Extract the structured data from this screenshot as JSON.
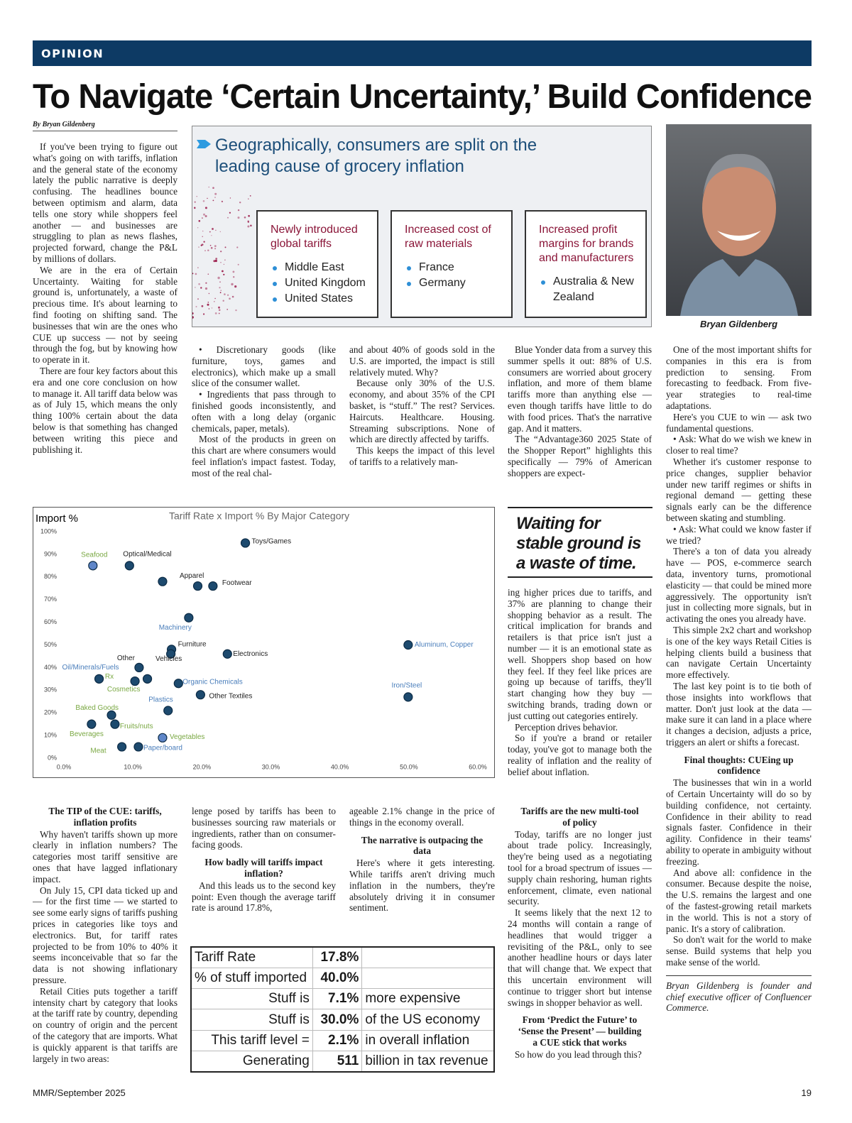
{
  "header": {
    "section": "OPINION",
    "title": "To Navigate ‘Certain Uncertainty,’ Build Confidence",
    "byline": "By Bryan Gildenberg"
  },
  "infographic": {
    "title": "Geographically, consumers are split on the leading cause of grocery inflation",
    "boxes": [
      {
        "heading": "Newly introduced global tariffs",
        "items": [
          "Middle East",
          "United Kingdom",
          "United States"
        ]
      },
      {
        "heading": "Increased cost of raw materials",
        "items": [
          "France",
          "Germany"
        ]
      },
      {
        "heading": "Increased profit margins for brands and manufacturers",
        "items": [
          "Australia & New Zealand"
        ]
      }
    ]
  },
  "photo": {
    "caption": "Bryan Gildenberg"
  },
  "pull_quote": "Waiting for stable ground is a waste of time.",
  "article": {
    "col1": [
      {
        "p": "If you've been trying to figure out what's going on with tariffs, inflation and the general state of the economy lately the public narrative is deeply confusing. The headlines bounce between optimism and alarm, data tells one story while shoppers feel another — and businesses are struggling to plan as news flashes, projected forward, change the P&L by millions of dollars."
      },
      {
        "p": "We are in the era of Certain Uncertainty. Waiting for stable ground is, unfortunately, a waste of precious time. It's about learning to find footing on shifting sand. The businesses that win are the ones who CUE up success — not by seeing through the fog, but by knowing how to operate in it."
      },
      {
        "p": "There are four key factors about this era and one core conclusion on how to manage it. All tariff data below was as of July 15, which means the only thing 100% certain about the data below is that something has changed between writing this piece and publishing it."
      }
    ],
    "col2": [
      {
        "p": "• Discretionary goods (like furniture, toys, games and electronics), which make up a small slice of the consumer wallet."
      },
      {
        "p": "• Ingredients that pass through to finished goods inconsistently, and often with a long delay (organic chemicals, paper, metals)."
      },
      {
        "p": "Most of the products in green on this chart are where consumers would feel inflation's impact fastest. Today, most of the real chal-"
      }
    ],
    "col3": [
      {
        "cont": "and about 40% of goods sold in the U.S. are imported, the impact is still relatively muted. Why?"
      },
      {
        "p": "Because only 30% of the U.S. economy, and about 35% of the CPI basket, is “stuff.” The rest? Services. Haircuts. Healthcare. Housing. Streaming subscriptions. None of which are directly affected by tariffs."
      },
      {
        "p": "This keeps the impact of this level of tariffs to a relatively man-"
      }
    ],
    "col4": [
      {
        "p": "Blue Yonder data from a survey this summer spells it out: 88% of U.S. consumers are worried about grocery inflation, and more of them blame tariffs more than anything else — even though tariffs have little to do with food prices. That's the narrative gap. And it matters."
      },
      {
        "p": "The “Advantage360 2025 State of the Shopper Report” highlights this specifically — 79% of American shoppers are expect-"
      }
    ],
    "col4_continued": [
      {
        "cont": "ing higher prices due to tariffs, and 37% are planning to change their shopping behavior as a result. The critical implication for brands and retailers is that price isn't just a number — it is an emotional state as well. Shoppers shop based on how they feel. If they feel like prices are going up because of tariffs, they'll start changing how they buy — switching brands, trading down or just cutting out categories entirely."
      },
      {
        "p": "Perception drives behavior."
      },
      {
        "p": "So if you're a brand or retailer today, you've got to manage both the reality of inflation and the reality of belief about inflation."
      }
    ],
    "col5": [
      {
        "p": "One of the most important shifts for companies in this era is from prediction to sensing. From forecasting to feedback. From five-year strategies to real-time adaptations."
      },
      {
        "p": "Here's you CUE to win — ask two fundamental questions."
      },
      {
        "p": "• Ask: What do we wish we knew in closer to real time?"
      },
      {
        "p": "Whether it's customer response to price changes, supplier behavior under new tariff regimes or shifts in regional demand — getting these signals early can be the difference between skating and stumbling."
      },
      {
        "p": "• Ask: What could we know faster if we tried?"
      },
      {
        "p": "There's a ton of data you already have — POS, e-commerce search data, inventory turns, promotional elasticity — that could be mined more aggressively. The opportunity isn't just in collecting more signals, but in activating the ones you already have."
      },
      {
        "p": "This simple 2x2 chart and workshop is one of the key ways Retail Cities is helping clients build a business that can navigate Certain Uncertainty more effectively."
      },
      {
        "p": "The last key point is to tie both of those insights into workflows that matter. Don't just look at the data — make sure it can land in a place where it changes a decision, adjusts a price, triggers an alert or shifts a forecast."
      },
      {
        "h": "Final thoughts: CUEing up confidence"
      },
      {
        "p": "The businesses that win in a world of Certain Uncertainty will do so by building confidence, not certainty. Confidence in their ability to read signals faster. Confidence in their agility. Confidence in their teams' ability to operate in ambiguity without freezing."
      },
      {
        "p": "And above all: confidence in the consumer. Because despite the noise, the U.S. remains the largest and one of the fastest-growing retail markets in the world. This is not a story of panic. It's a story of calibration."
      },
      {
        "p": "So don't wait for the world to make sense. Build systems that help you make sense of the world."
      },
      {
        "bio": "Bryan Gildenberg is founder and chief executive officer of Confluencer Commerce."
      }
    ],
    "bottom1": [
      {
        "h": "The TIP of the CUE: tariffs, inflation profits"
      },
      {
        "p": "Why haven't tariffs shown up more clearly in inflation numbers? The categories most tariff sensitive are ones that have lagged inflationary impact."
      },
      {
        "p": "On July 15, CPI data ticked up and — for the first time — we started to see some early signs of tariffs pushing prices in categories like toys and electronics. But, for tariff rates projected to be from 10% to 40% it seems inconceivable that so far the data is not showing inflationary pressure."
      },
      {
        "p": "Retail Cities puts together a tariff intensity chart by category that looks at the tariff rate by country, depending on country of origin and the percent of the category that are imports. What is quickly apparent is that tariffs are largely in two areas:"
      }
    ],
    "bottom2": [
      {
        "cont": "lenge posed by tariffs has been to businesses sourcing raw materials or ingredients, rather than on consumer-facing goods."
      },
      {
        "h": "How badly will tariffs impact inflation?"
      },
      {
        "p": "And this leads us to the second key point: Even though the average tariff rate is around 17.8%,"
      }
    ],
    "bottom3": [
      {
        "cont": "ageable 2.1% change in the price of things in the economy overall."
      },
      {
        "h": "The narrative is outpacing the data"
      },
      {
        "p": "Here's where it gets interesting. While tariffs aren't driving much inflation in the numbers, they're absolutely driving it in consumer sentiment."
      }
    ],
    "bottom4": [
      {
        "h": "Tariffs are the new multi-tool of policy"
      },
      {
        "p": "Today, tariffs are no longer just about trade policy. Increasingly, they're being used as a negotiating tool for a broad spectrum of issues — supply chain reshoring, human rights enforcement, climate, even national security."
      },
      {
        "p": "It seems likely that the next 12 to 24 months will contain a range of headlines that would trigger a revisiting of the P&L, only to see another headline hours or days later that will change that. We expect that this uncertain environment will continue to trigger short but intense swings in shopper behavior as well."
      },
      {
        "h": "From ‘Predict the Future’ to ‘Sense the Present’ — building a CUE stick that works"
      },
      {
        "p": "So how do you lead through this?"
      }
    ]
  },
  "chart": {
    "type": "scatter",
    "title": "Tariff Rate x Import % By Major Category",
    "y_label": "Import %",
    "color": "#1d4a6e",
    "xlim": [
      0,
      60
    ],
    "ylim": [
      0,
      100
    ],
    "xticks": [
      {
        "value": 0,
        "label": "0.0%"
      },
      {
        "value": 10,
        "label": "10.0%"
      },
      {
        "value": 20,
        "label": "20.0%"
      },
      {
        "value": 30,
        "label": "30.0%"
      },
      {
        "value": 40,
        "label": "40.0%"
      },
      {
        "value": 50,
        "label": "50.0%"
      },
      {
        "value": 60,
        "label": "60.0%"
      }
    ],
    "yticks": [
      {
        "value": 0,
        "label": "0%"
      },
      {
        "value": 10,
        "label": "10%"
      },
      {
        "value": 20,
        "label": "20%"
      },
      {
        "value": 30,
        "label": "30%"
      },
      {
        "value": 40,
        "label": "40%"
      },
      {
        "value": 50,
        "label": "50%"
      },
      {
        "value": 60,
        "label": "60%"
      },
      {
        "value": 70,
        "label": "70%"
      },
      {
        "value": 80,
        "label": "80%"
      },
      {
        "value": 90,
        "label": "90%"
      },
      {
        "value": 100,
        "label": "100%"
      }
    ],
    "points": [
      {
        "x": 4.2,
        "y": 85,
        "label": "Seafood",
        "label_color": "#7aa843",
        "color": "#5f86c8"
      },
      {
        "x": 9.5,
        "y": 85,
        "label": "Optical/Medical",
        "label_color": "#222222"
      },
      {
        "x": 14.3,
        "y": 78,
        "label": "Apparel",
        "label_color": "#222222"
      },
      {
        "x": 19.4,
        "y": 76
      },
      {
        "x": 21.6,
        "y": 76,
        "label": "Footwear",
        "label_color": "#222222"
      },
      {
        "x": 26.3,
        "y": 95,
        "label": "Toys/Games",
        "label_color": "#222222"
      },
      {
        "x": 18.1,
        "y": 62,
        "label": "Machinery",
        "label_color": "#4a7ebb"
      },
      {
        "x": 15.6,
        "y": 48,
        "label": "Furniture",
        "label_color": "#222222"
      },
      {
        "x": 15.5,
        "y": 46,
        "label": "Vehicles",
        "label_color": "#222222"
      },
      {
        "x": 23.7,
        "y": 46,
        "label": "Electronics",
        "label_color": "#222222"
      },
      {
        "x": 10.9,
        "y": 40,
        "label": "Other",
        "label_color": "#222222"
      },
      {
        "x": 12.1,
        "y": 35,
        "label": "Cosmetics",
        "label_color": "#7aa843"
      },
      {
        "x": 10.3,
        "y": 34,
        "label": "Rx",
        "label_color": "#7aa843"
      },
      {
        "x": 5.1,
        "y": 35,
        "label": "Oil/Minerals/Fuels",
        "label_color": "#4a7ebb"
      },
      {
        "x": 16.6,
        "y": 33,
        "label": "Organic Chemicals",
        "label_color": "#4a7ebb"
      },
      {
        "x": 19.8,
        "y": 28,
        "label": "Other Textiles",
        "label_color": "#222222"
      },
      {
        "x": 15.1,
        "y": 21,
        "label": "Plastics",
        "label_color": "#4a7ebb"
      },
      {
        "x": 6.9,
        "y": 19,
        "label": "Baked Goods",
        "label_color": "#7aa843"
      },
      {
        "x": 7.4,
        "y": 15,
        "label": "Fruits/nuts",
        "label_color": "#7aa843"
      },
      {
        "x": 4.0,
        "y": 15,
        "label": "Beverages",
        "label_color": "#7aa843"
      },
      {
        "x": 14.3,
        "y": 9,
        "label": "Vegetables",
        "label_color": "#7aa843",
        "color": "#5f86c8"
      },
      {
        "x": 8.4,
        "y": 5,
        "label": "Meat",
        "label_color": "#7aa843"
      },
      {
        "x": 10.8,
        "y": 5,
        "label": "Paper/board",
        "label_color": "#4a7ebb"
      },
      {
        "x": 49.9,
        "y": 50,
        "label": "Aluminum, Copper",
        "label_color": "#4a7ebb"
      },
      {
        "x": 49.9,
        "y": 27,
        "label": "Iron/Steel",
        "label_color": "#4a7ebb"
      }
    ]
  },
  "table": {
    "rows": [
      [
        "Tariff Rate",
        "17.8%"
      ],
      [
        "% of stuff imported",
        "40.0%"
      ],
      [
        "Stuff is",
        "7.1%",
        "more expensive"
      ],
      [
        "Stuff is",
        "30.0%",
        "of the US economy"
      ],
      [
        "This tariff level =",
        "2.1%",
        "in overall inflation"
      ],
      [
        "Generating",
        "511",
        "billion in tax revenue"
      ]
    ]
  },
  "footer": {
    "publication": "MMR/September 2025",
    "page": "19"
  }
}
